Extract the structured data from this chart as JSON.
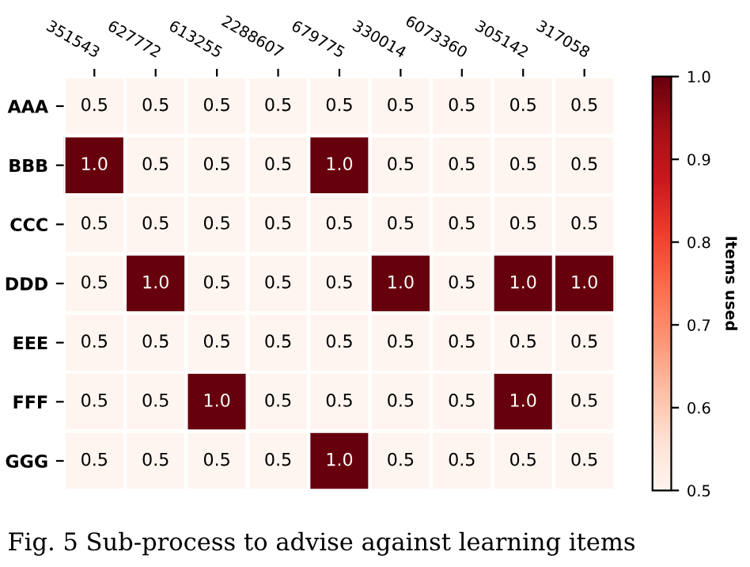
{
  "chart_data": {
    "type": "heatmap",
    "categories": [
      "351543",
      "627772",
      "613255",
      "2288607",
      "679775",
      "330014",
      "6073360",
      "305142",
      "317058"
    ],
    "y_categories": [
      "AAA",
      "BBB",
      "CCC",
      "DDD",
      "EEE",
      "FFF",
      "GGG"
    ],
    "cells": [
      [
        0.5,
        0.5,
        0.5,
        0.5,
        0.5,
        0.5,
        0.5,
        0.5,
        0.5
      ],
      [
        1.0,
        0.5,
        0.5,
        0.5,
        1.0,
        0.5,
        0.5,
        0.5,
        0.5
      ],
      [
        0.5,
        0.5,
        0.5,
        0.5,
        0.5,
        0.5,
        0.5,
        0.5,
        0.5
      ],
      [
        0.5,
        1.0,
        0.5,
        0.5,
        0.5,
        1.0,
        0.5,
        1.0,
        1.0
      ],
      [
        0.5,
        0.5,
        0.5,
        0.5,
        0.5,
        0.5,
        0.5,
        0.5,
        0.5
      ],
      [
        0.5,
        0.5,
        1.0,
        0.5,
        0.5,
        0.5,
        0.5,
        1.0,
        0.5
      ],
      [
        0.5,
        0.5,
        0.5,
        0.5,
        1.0,
        0.5,
        0.5,
        0.5,
        0.5
      ]
    ],
    "cell_labels": [
      [
        "0.5",
        "0.5",
        "0.5",
        "0.5",
        "0.5",
        "0.5",
        "0.5",
        "0.5",
        "0.5"
      ],
      [
        "1.0",
        "0.5",
        "0.5",
        "0.5",
        "1.0",
        "0.5",
        "0.5",
        "0.5",
        "0.5"
      ],
      [
        "0.5",
        "0.5",
        "0.5",
        "0.5",
        "0.5",
        "0.5",
        "0.5",
        "0.5",
        "0.5"
      ],
      [
        "0.5",
        "1.0",
        "0.5",
        "0.5",
        "0.5",
        "1.0",
        "0.5",
        "1.0",
        "1.0"
      ],
      [
        "0.5",
        "0.5",
        "0.5",
        "0.5",
        "0.5",
        "0.5",
        "0.5",
        "0.5",
        "0.5"
      ],
      [
        "0.5",
        "0.5",
        "1.0",
        "0.5",
        "0.5",
        "0.5",
        "0.5",
        "1.0",
        "0.5"
      ],
      [
        "0.5",
        "0.5",
        "0.5",
        "0.5",
        "1.0",
        "0.5",
        "0.5",
        "0.5",
        "0.5"
      ]
    ],
    "clim": [
      0.5,
      1.0
    ],
    "cticks": [
      0.5,
      0.6,
      0.7,
      0.8,
      0.9,
      {
        "value": 1.0,
        "label": "1.0"
      }
    ],
    "clabel": "Items used",
    "annotations": [
      "Fig. 5 Sub-process to advise against learning items"
    ]
  }
}
